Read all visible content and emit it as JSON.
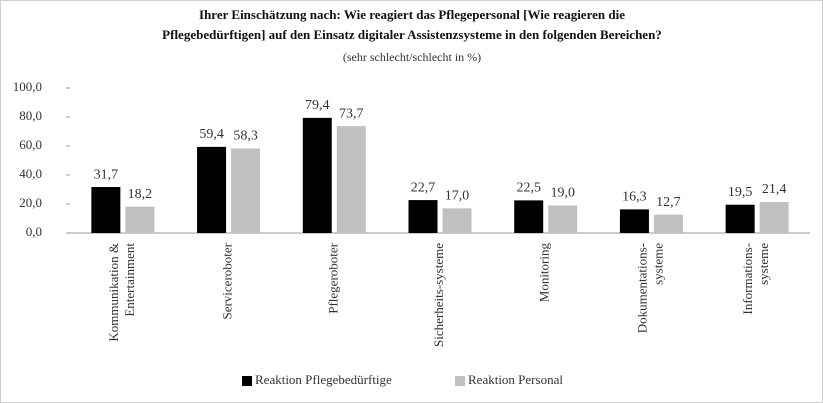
{
  "chart_data": {
    "type": "bar",
    "title": "Ihrer Einschätzung  nach: Wie reagiert das Pflegepersonal [Wie reagieren die\nPflegebedürftigen]  auf den Einsatz digitaler Assistenzsysteme in den folgenden Bereichen?",
    "subtitle": "(sehr schlecht/schlecht  in %)",
    "categories": [
      "Kommunikation &\nEntertainment",
      "Serviceroboter",
      "Pflegeroboter",
      "Sicherheits-systeme",
      "Monitoring",
      "Dokumentations-\nsysteme",
      "Informations-\nsysteme"
    ],
    "series": [
      {
        "name": "Reaktion Pflegebedürftige",
        "color": "#000000",
        "values": [
          31.7,
          59.4,
          79.4,
          22.7,
          22.5,
          16.3,
          19.5
        ],
        "value_labels": [
          "31,7",
          "59,4",
          "79,4",
          "22,7",
          "22,5",
          "16,3",
          "19,5"
        ]
      },
      {
        "name": "Reaktion Personal",
        "color": "#c0c0c0",
        "values": [
          18.2,
          58.3,
          73.7,
          17.0,
          19.0,
          12.7,
          21.4
        ],
        "value_labels": [
          "18,2",
          "58,3",
          "73,7",
          "17,0",
          "19,0",
          "12,7",
          "21,4"
        ]
      }
    ],
    "ylim": [
      0,
      100
    ],
    "yticks": [
      {
        "value": 0,
        "label": "0,0"
      },
      {
        "value": 20,
        "label": "20,0"
      },
      {
        "value": 40,
        "label": "40,0"
      },
      {
        "value": 60,
        "label": "60,0"
      },
      {
        "value": 80,
        "label": "80,0"
      },
      {
        "value": 100,
        "label": "100,0"
      }
    ],
    "grid": false,
    "legend": "bottom"
  }
}
